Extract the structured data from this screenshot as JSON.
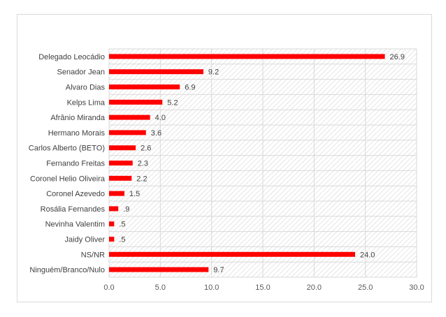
{
  "chart_data": {
    "type": "bar",
    "orientation": "horizontal",
    "categories": [
      "Delegado Leocádio",
      "Senador Jean",
      "Alvaro Dias",
      "Kelps Lima",
      "Afrânio Miranda",
      "Hermano Morais",
      "Carlos Alberto (BETO)",
      "Fernando Freitas",
      "Coronel Helio Oliveira",
      "Coronel Azevedo",
      "Rosália Fernandes",
      "Nevinha Valentim",
      "Jaidy Oliver",
      "NS/NR",
      "Ninguém/Branco/Nulo"
    ],
    "values": [
      26.9,
      9.2,
      6.9,
      5.2,
      4.0,
      3.6,
      2.6,
      2.3,
      2.2,
      1.5,
      0.9,
      0.5,
      0.5,
      24.0,
      9.7
    ],
    "value_labels": [
      "26.9",
      "9.2",
      "6.9",
      "5.2",
      "4.0",
      "3.6",
      "2.6",
      "2.3",
      "2.2",
      "1.5",
      ".9",
      ".5",
      ".5",
      "24.0",
      "9.7"
    ],
    "xlim": [
      0,
      30
    ],
    "x_ticks": [
      "0.0",
      "5.0",
      "10.0",
      "15.0",
      "20.0",
      "25.0",
      "30.0"
    ],
    "title": "",
    "xlabel": "",
    "ylabel": "",
    "grid": true,
    "bar_color": "#ff0000",
    "plot_background": "hatched-gray"
  }
}
